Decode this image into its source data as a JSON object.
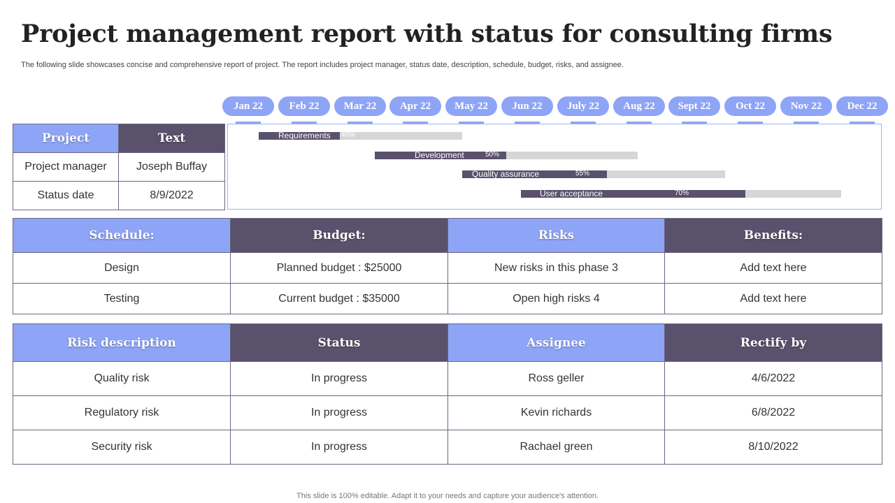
{
  "title": "Project management report with status for consulting firms",
  "subtitle": "The following slide showcases concise and comprehensive report of project. The report includes project manager, status date, description, schedule, budget, risks, and assignee.",
  "months": [
    "Jan 22",
    "Feb 22",
    "Mar 22",
    "Apr 22",
    "May 22",
    "Jun 22",
    "July 22",
    "Aug 22",
    "Sept 22",
    "Oct 22",
    "Nov 22",
    "Dec 22"
  ],
  "project_table": {
    "headers": [
      "Project",
      "Text"
    ],
    "rows": [
      [
        "Project manager",
        "Joseph Buffay"
      ],
      [
        "Status date",
        "8/9/2022"
      ]
    ]
  },
  "gantt": {
    "tasks": [
      {
        "name": "Requirements",
        "progress": 40,
        "progress_label": "40%"
      },
      {
        "name": "Development",
        "progress": 50,
        "progress_label": "50%"
      },
      {
        "name": "Quality assurance",
        "progress": 55,
        "progress_label": "55%"
      },
      {
        "name": "User acceptance",
        "progress": 70,
        "progress_label": "70%"
      }
    ]
  },
  "schedule_table": {
    "headers": [
      "Schedule:",
      "Budget:",
      "Risks",
      "Benefits:"
    ],
    "rows": [
      [
        "Design",
        "Planned budget : $25000",
        "New risks in this phase 3",
        "Add text here"
      ],
      [
        "Testing",
        "Current budget : $35000",
        "Open high risks 4",
        "Add text here"
      ]
    ]
  },
  "risk_table": {
    "headers": [
      "Risk description",
      "Status",
      "Assignee",
      "Rectify by"
    ],
    "rows": [
      [
        "Quality risk",
        "In progress",
        "Ross geller",
        "4/6/2022"
      ],
      [
        "Regulatory risk",
        "In progress",
        "Kevin richards",
        "6/8/2022"
      ],
      [
        "Security risk",
        "In progress",
        "Rachael green",
        "8/10/2022"
      ]
    ]
  },
  "footer": "This slide is 100% editable. Adapt it to your needs and capture your audience's attention.",
  "colors": {
    "accent_blue": "#8ea4f6",
    "accent_dark": "#5a516c",
    "track_gray": "#d6d6d6"
  }
}
